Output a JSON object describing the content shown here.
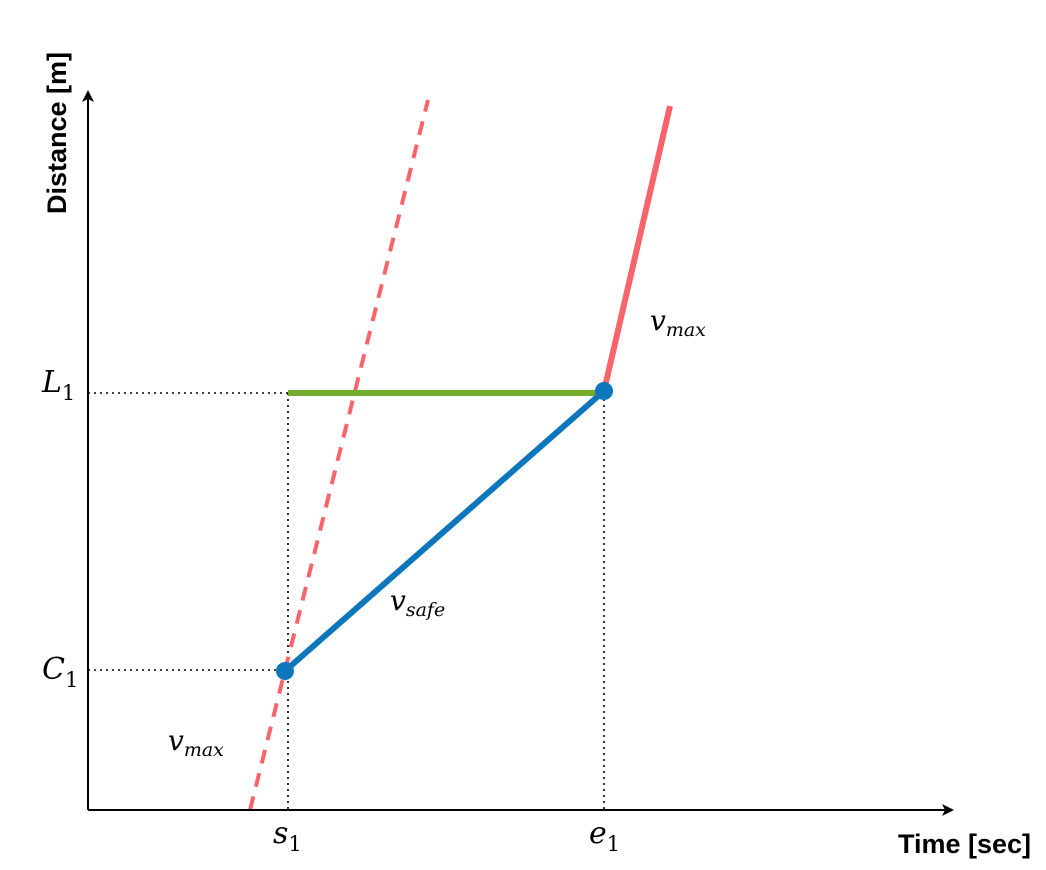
{
  "axes": {
    "x_title": "Time [sec]",
    "y_title": "Distance [m]"
  },
  "ticks": {
    "s": {
      "base": "s",
      "sub": "1"
    },
    "e": {
      "base": "e",
      "sub": "1"
    },
    "L": {
      "base": "L",
      "sub": "1"
    },
    "C": {
      "base": "C",
      "sub": "1"
    }
  },
  "labels": {
    "vmax_top": {
      "base": "v",
      "sub": "max"
    },
    "vmax_bottom": {
      "base": "v",
      "sub": "max"
    },
    "vsafe": {
      "base": "v",
      "sub": "safe"
    }
  },
  "colors": {
    "vmax_line": "#f8646a",
    "vsafe_line": "#0e77bc",
    "horizon_line": "#74ac2e",
    "axis": "#000000",
    "guide": "#000000"
  }
}
